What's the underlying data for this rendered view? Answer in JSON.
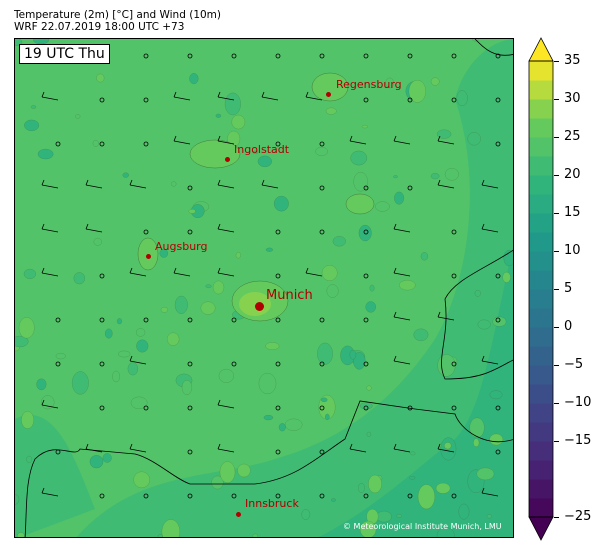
{
  "header": {
    "title_line1": "Temperature (2m) [°C] and Wind (10m)",
    "title_line2": "WRF 22.07.2019 18:00 UTC +73"
  },
  "map": {
    "time_label": "19 UTC Thu",
    "background_color": "#7ad151",
    "cities": [
      {
        "name": "Regensburg",
        "major": false
      },
      {
        "name": "Ingolstadt",
        "major": false
      },
      {
        "name": "Augsburg",
        "major": false
      },
      {
        "name": "Munich",
        "major": true
      },
      {
        "name": "Innsbruck",
        "major": false
      }
    ],
    "copyright": "© Meteorological Institute Munich, LMU"
  },
  "colorbar": {
    "min": -25,
    "max": 35,
    "step": 2.5,
    "colormap": "viridis",
    "extend": "both",
    "ticks": [
      "35",
      "30",
      "25",
      "20",
      "15",
      "10",
      "5",
      "0",
      "−5",
      "−10",
      "−15",
      "−25"
    ]
  }
}
